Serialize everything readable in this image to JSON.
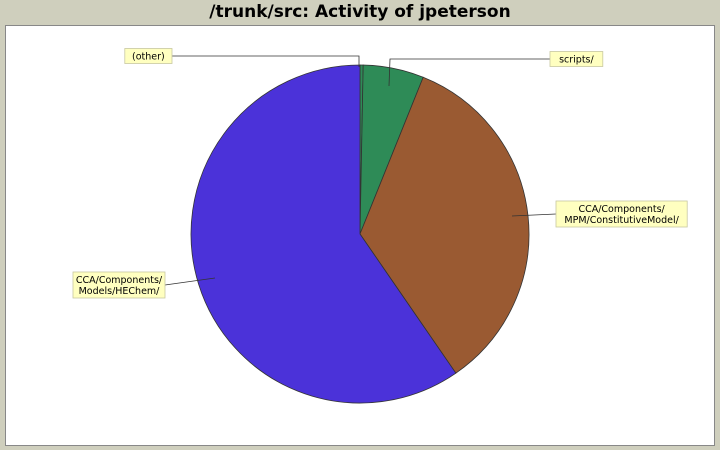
{
  "chart_data": {
    "type": "pie",
    "title": "/trunk/src: Activity of jpeterson",
    "slices": [
      {
        "label": "(other)",
        "value": 0.3,
        "color": "#2e8b57"
      },
      {
        "label": "scripts/",
        "value": 5.8,
        "color": "#2e8b57"
      },
      {
        "label": "CCA/Components/\nMPM/ConstitutiveModel/",
        "value": 34.3,
        "color": "#9a5a32"
      },
      {
        "label": "CCA/Components/\nModels/HEChem/",
        "value": 59.6,
        "color": "#4b32d9"
      }
    ],
    "legend": "none",
    "label_background": "#ffffc0"
  }
}
